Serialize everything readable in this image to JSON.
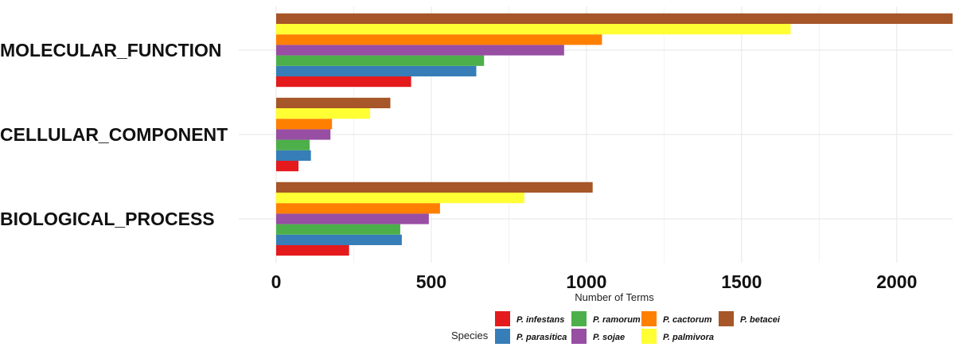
{
  "chart_data": {
    "type": "bar",
    "orientation": "horizontal",
    "title": "",
    "xlabel": "Number of Terms",
    "ylabel": "",
    "xlim": [
      0,
      2180
    ],
    "xticks": [
      0,
      500,
      1000,
      1500,
      2000
    ],
    "grid": true,
    "categories": [
      "MOLECULAR_FUNCTION",
      "CELLULAR_COMPONENT",
      "BIOLOGICAL_PROCESS"
    ],
    "legend": {
      "title": "Species",
      "position": "bottom"
    },
    "series": [
      {
        "name": "P. infestans",
        "color": "#e41a1c",
        "values": [
          435,
          72,
          235
        ]
      },
      {
        "name": "P. parasitica",
        "color": "#377eb8",
        "values": [
          645,
          112,
          405
        ]
      },
      {
        "name": "P. ramorum",
        "color": "#4daf4a",
        "values": [
          670,
          108,
          400
        ]
      },
      {
        "name": "P. sojae",
        "color": "#984ea3",
        "values": [
          928,
          175,
          492
        ]
      },
      {
        "name": "P. cactorum",
        "color": "#ff7f00",
        "values": [
          1050,
          180,
          528
        ]
      },
      {
        "name": "P. palmivora",
        "color": "#ffff33",
        "values": [
          1658,
          303,
          800
        ]
      },
      {
        "name": "P. betacei",
        "color": "#a65628",
        "values": [
          2180,
          368,
          1020
        ]
      }
    ]
  }
}
